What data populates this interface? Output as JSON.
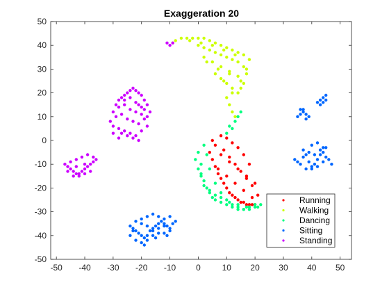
{
  "chart_data": {
    "type": "scatter",
    "title": "Exaggeration 20",
    "xlabel": "",
    "ylabel": "",
    "xlim": [
      -52,
      54
    ],
    "ylim": [
      -50,
      50
    ],
    "xticks": [
      -50,
      -40,
      -30,
      -20,
      -10,
      0,
      10,
      20,
      30,
      40,
      50
    ],
    "yticks": [
      -50,
      -40,
      -30,
      -20,
      -10,
      0,
      10,
      20,
      30,
      40,
      50
    ],
    "grid": false,
    "legend_position": "bottom-right",
    "series": [
      {
        "name": "Running",
        "color": "#ff0000",
        "clusters": [
          {
            "x": [
              4,
              5,
              6,
              7,
              8,
              9,
              10,
              11,
              12,
              13,
              14,
              15,
              16,
              17,
              18,
              19,
              20,
              8,
              10,
              12,
              14,
              16,
              18,
              6,
              9,
              11,
              13,
              15,
              17,
              19,
              21,
              7,
              10,
              13,
              16,
              19,
              5,
              8,
              11,
              14,
              17,
              20
            ],
            "y": [
              -5,
              -8,
              -11,
              -14,
              -16,
              -18,
              -20,
              -22,
              -23,
              -24,
              -25,
              -26,
              -26,
              -27,
              -27,
              -27,
              -27,
              2,
              1,
              -1,
              -3,
              -6,
              -10,
              -2,
              -4,
              -7,
              -10,
              -13,
              -16,
              -19,
              -23,
              -12,
              -15,
              -18,
              -21,
              -24,
              0,
              -6,
              -9,
              -12,
              -15,
              -18
            ]
          }
        ]
      },
      {
        "name": "Walking",
        "color": "#ccff00",
        "clusters": [
          {
            "x": [
              -9,
              -8,
              -6,
              -4,
              -2,
              0,
              2,
              4,
              6,
              8,
              10,
              12,
              14,
              16,
              18,
              0,
              2,
              4,
              6,
              8,
              10,
              12,
              14,
              16,
              17,
              2,
              5,
              8,
              11,
              14,
              16,
              8,
              10,
              12,
              14,
              10,
              11,
              12,
              13,
              -3,
              1,
              5,
              9,
              13,
              17,
              3,
              7,
              11,
              15,
              6,
              9,
              12,
              15
            ],
            "y": [
              41,
              42,
              43,
              43,
              43,
              43,
              43,
              42,
              41,
              40,
              39,
              38,
              37,
              36,
              34,
              40,
              39,
              38,
              37,
              36,
              35,
              34,
              33,
              31,
              28,
              35,
              33,
              31,
              29,
              27,
              24,
              26,
              24,
              22,
              20,
              18,
              15,
              12,
              10,
              42,
              41,
              40,
              38,
              36,
              30,
              33,
              30,
              28,
              25,
              28,
              25,
              20,
              22
            ]
          }
        ]
      },
      {
        "name": "Dancing",
        "color": "#00ff80",
        "clusters": [
          {
            "x": [
              0,
              1,
              1,
              2,
              3,
              4,
              5,
              6,
              8,
              10,
              12,
              14,
              16,
              18,
              20,
              22,
              2,
              3,
              4,
              6,
              8,
              10,
              12,
              14,
              16,
              18,
              20,
              12,
              13,
              14,
              15,
              10,
              11,
              -1,
              0,
              1,
              2,
              4,
              6,
              8,
              11,
              14,
              17,
              21
            ],
            "y": [
              -5,
              -10,
              -14,
              -17,
              -20,
              -22,
              -24,
              -25,
              -26,
              -27,
              -28,
              -29,
              -29,
              -29,
              -28,
              -27,
              -2,
              -6,
              -12,
              -18,
              -22,
              -25,
              -27,
              -28,
              -29,
              -28,
              -27,
              5,
              8,
              10,
              12,
              3,
              6,
              -8,
              -12,
              -15,
              -19,
              -21,
              -23,
              -24,
              -26,
              -27,
              -28,
              -28
            ]
          }
        ]
      },
      {
        "name": "Sitting",
        "color": "#0066ff",
        "clusters": [
          {
            "x": [
              -24,
              -23,
              -22,
              -21,
              -20,
              -19,
              -18,
              -17,
              -16,
              -15,
              -14,
              -13,
              -12,
              -11,
              -10,
              -9,
              -8,
              -22,
              -20,
              -18,
              -16,
              -14,
              -12,
              -10,
              -24,
              -22,
              -20,
              -18,
              -16,
              -14,
              -12,
              -10,
              -20,
              -18,
              -16,
              -14,
              -12,
              -23,
              -19,
              -15,
              -11
            ],
            "y": [
              -36,
              -37,
              -38,
              -39,
              -40,
              -41,
              -40,
              -38,
              -37,
              -36,
              -35,
              -34,
              -35,
              -36,
              -37,
              -35,
              -34,
              -34,
              -33,
              -32,
              -31,
              -32,
              -33,
              -32,
              -40,
              -42,
              -43,
              -42,
              -40,
              -39,
              -39,
              -38,
              -35,
              -36,
              -38,
              -37,
              -36,
              -38,
              -44,
              -41,
              -40
            ]
          },
          {
            "x": [
              34,
              35,
              36,
              37,
              38,
              39,
              40,
              41,
              42,
              43,
              44,
              45,
              38,
              40,
              42,
              44,
              46,
              47,
              37,
              39,
              41,
              43,
              45,
              40,
              42,
              44
            ],
            "y": [
              -8,
              -9,
              -10,
              -7,
              -6,
              -9,
              -11,
              -10,
              -8,
              -6,
              -5,
              -7,
              -12,
              -12,
              -11,
              -9,
              -8,
              -10,
              -4,
              -5,
              -6,
              -4,
              -3,
              -2,
              -1,
              -3
            ]
          },
          {
            "x": [
              35,
              36,
              37,
              38,
              39,
              36,
              37,
              38,
              42,
              43,
              44,
              45,
              43,
              44,
              45
            ],
            "y": [
              10,
              11,
              12,
              11,
              10,
              13,
              13,
              9,
              16,
              17,
              18,
              19,
              15,
              16,
              17
            ]
          }
        ]
      },
      {
        "name": "Standing",
        "color": "#cc00ff",
        "clusters": [
          {
            "x": [
              -31,
              -30,
              -29,
              -28,
              -27,
              -26,
              -25,
              -24,
              -23,
              -22,
              -21,
              -20,
              -19,
              -18,
              -17,
              -30,
              -28,
              -26,
              -24,
              -22,
              -20,
              -18,
              -29,
              -27,
              -25,
              -23,
              -21,
              -19,
              -28,
              -26,
              -24,
              -22,
              -20,
              -27,
              -25,
              -23,
              -21,
              -26,
              -24,
              -22,
              -21,
              -20,
              -19,
              -18,
              -30,
              -28
            ],
            "y": [
              8,
              12,
              15,
              17,
              18,
              19,
              20,
              21,
              22,
              21,
              20,
              19,
              17,
              15,
              12,
              6,
              5,
              4,
              3,
              2,
              4,
              6,
              10,
              11,
              9,
              8,
              7,
              9,
              14,
              15,
              13,
              12,
              11,
              3,
              2,
              1,
              0,
              17,
              18,
              16,
              15,
              14,
              13,
              10,
              3,
              1
            ]
          },
          {
            "x": [
              -47,
              -46,
              -45,
              -44,
              -43,
              -42,
              -41,
              -40,
              -39,
              -38,
              -37,
              -36,
              -45,
              -43,
              -41,
              -39,
              -37,
              -44,
              -42,
              -40,
              -38,
              -46,
              -43,
              -40
            ],
            "y": [
              -10,
              -11,
              -12,
              -13,
              -14,
              -14,
              -13,
              -12,
              -11,
              -10,
              -9,
              -8,
              -9,
              -8,
              -7,
              -6,
              -7,
              -15,
              -15,
              -14,
              -13,
              -13,
              -11,
              -10
            ]
          },
          {
            "x": [
              -11,
              -10,
              -9
            ],
            "y": [
              41,
              40,
              41
            ]
          }
        ]
      }
    ]
  }
}
